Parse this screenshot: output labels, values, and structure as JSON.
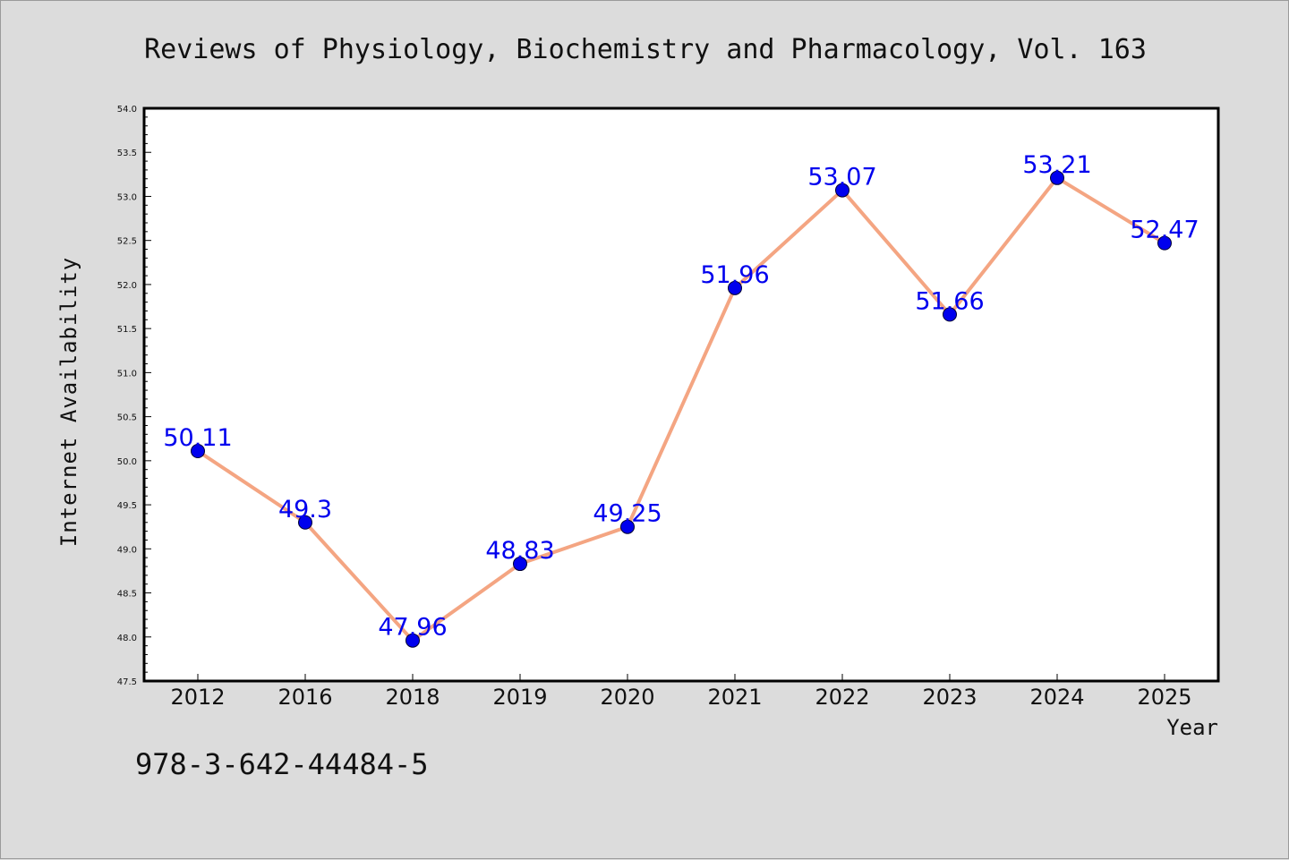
{
  "chart_data": {
    "type": "line",
    "title": "Reviews of Physiology, Biochemistry and Pharmacology, Vol. 163",
    "xlabel": "Year",
    "ylabel": "Internet Availability",
    "categories": [
      "2012",
      "2016",
      "2018",
      "2019",
      "2020",
      "2021",
      "2022",
      "2023",
      "2024",
      "2025"
    ],
    "series": [
      {
        "values": [
          50.11,
          49.3,
          47.96,
          48.83,
          49.25,
          51.96,
          53.07,
          51.66,
          53.21,
          52.47
        ],
        "data_labels": [
          "50.11",
          "49.3",
          "47.96",
          "48.83",
          "49.25",
          "51.96",
          "53.07",
          "51.66",
          "53.21",
          "52.47"
        ]
      }
    ],
    "ylim": [
      47.5,
      54.0
    ],
    "yticks": [
      "47.5",
      "48.0",
      "48.5",
      "49.0",
      "49.5",
      "50.0",
      "50.5",
      "51.0",
      "51.5",
      "52.0",
      "52.5",
      "53.0",
      "53.5",
      "54.0"
    ],
    "grid": false,
    "legend": "none",
    "colors": {
      "line": "#f4a582",
      "marker": "#0000ee",
      "label": "#0000ee",
      "background": "#dcdcdc",
      "plot_area": "#ffffff"
    }
  },
  "footnote": "978-3-642-44484-5"
}
